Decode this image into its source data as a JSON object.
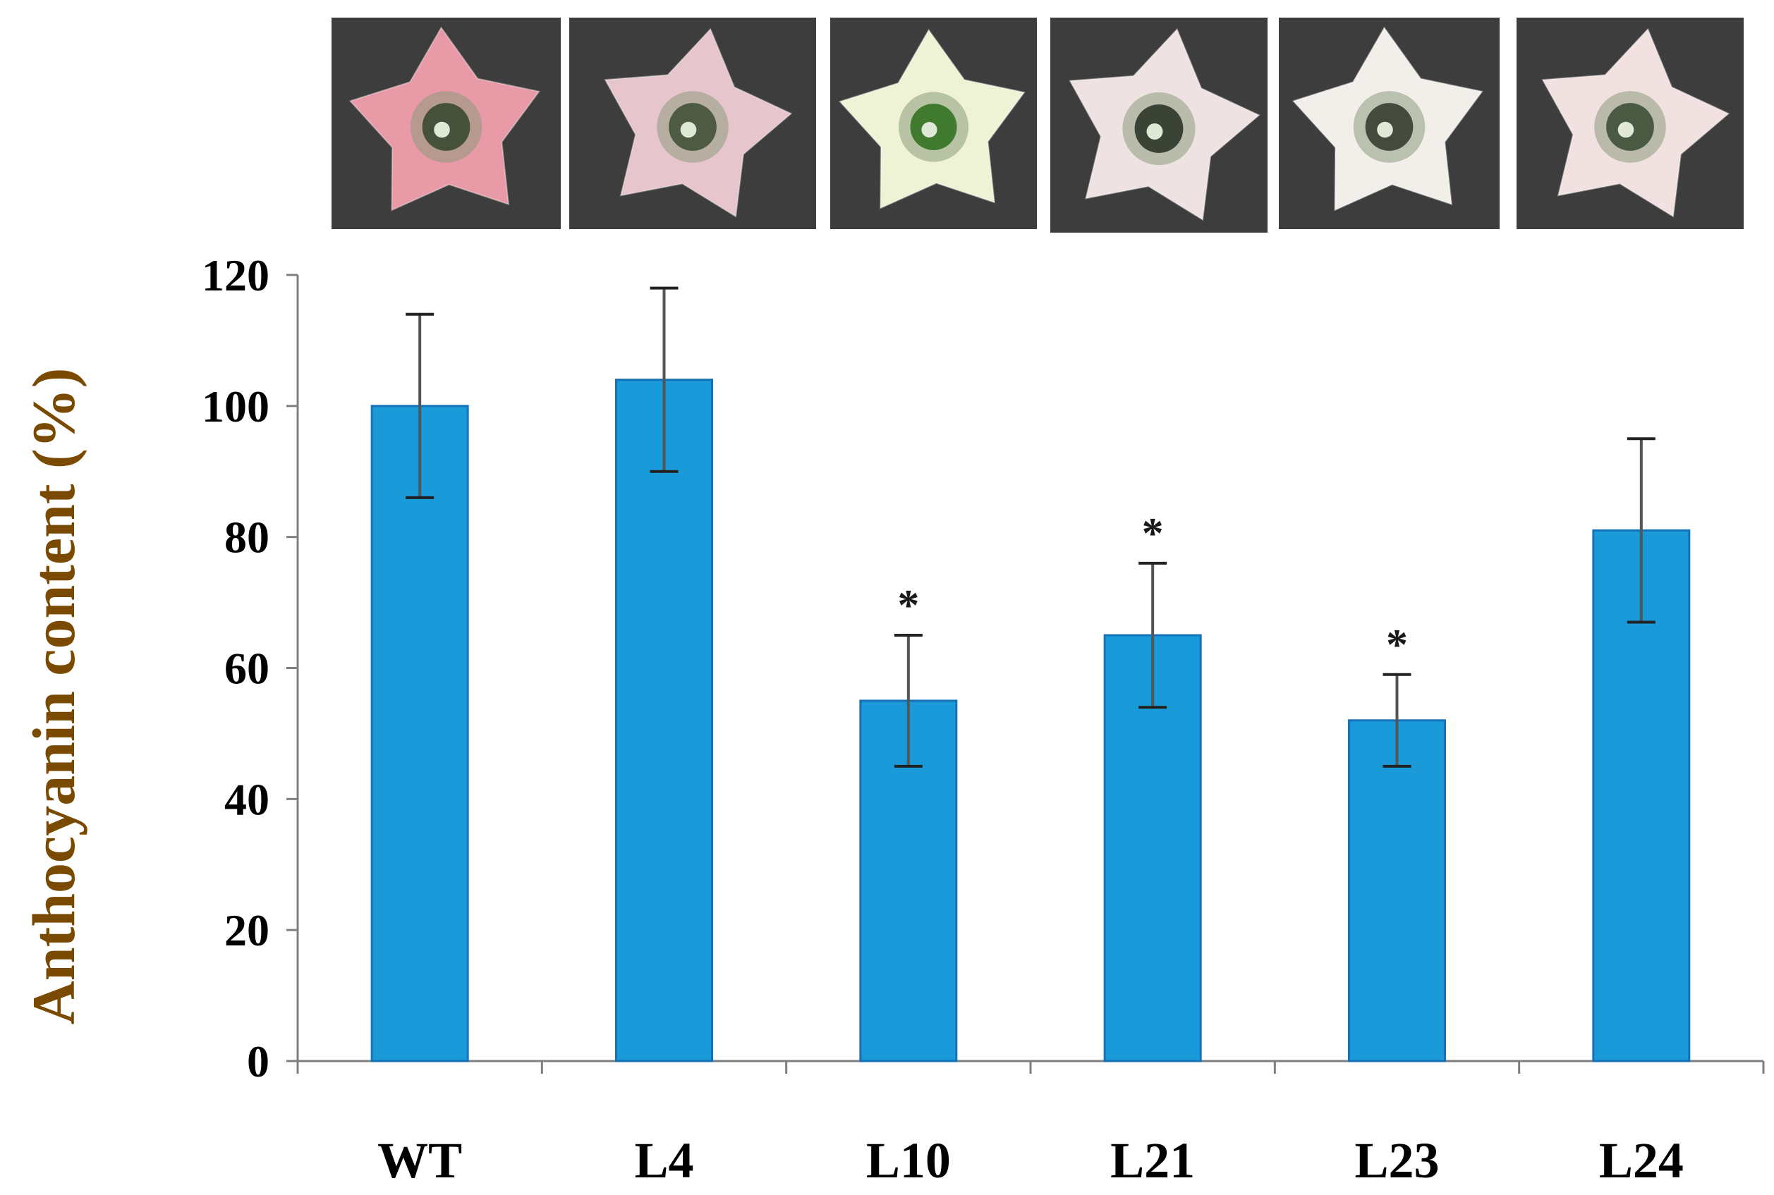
{
  "chart_data": {
    "type": "bar",
    "title": "",
    "xlabel": "",
    "ylabel": "Anthocyanin content (%)",
    "ylim": [
      0,
      120
    ],
    "yticks": [
      0,
      20,
      40,
      60,
      80,
      100,
      120
    ],
    "categories": [
      "WT",
      "L4",
      "L10",
      "L21",
      "L23",
      "L24"
    ],
    "values": [
      100,
      104,
      55,
      65,
      52,
      81
    ],
    "error": [
      14,
      14,
      10,
      11,
      7,
      14
    ],
    "significance": [
      "",
      "",
      "*",
      "*",
      "*",
      ""
    ],
    "images": [
      {
        "name": "flower-WT",
        "petal_color": "#e89aa6",
        "center_color": "#46513c"
      },
      {
        "name": "flower-L4",
        "petal_color": "#e6c6cc",
        "center_color": "#4e5a42"
      },
      {
        "name": "flower-L10",
        "petal_color": "#eef3d6",
        "center_color": "#3f7a2f"
      },
      {
        "name": "flower-L21",
        "petal_color": "#efe2e2",
        "center_color": "#3b4236"
      },
      {
        "name": "flower-L23",
        "petal_color": "#f2efea",
        "center_color": "#444b3c"
      },
      {
        "name": "flower-L24",
        "petal_color": "#f1e1e0",
        "center_color": "#4a5a43"
      }
    ],
    "colors": {
      "bar_fill": "#1a9ad9",
      "bar_edge": "#1672b8",
      "axis": "#7f7f7f",
      "ylabel": "#7a4a00",
      "tick_text": "#000000",
      "photo_background": "#3d3d3d"
    }
  }
}
